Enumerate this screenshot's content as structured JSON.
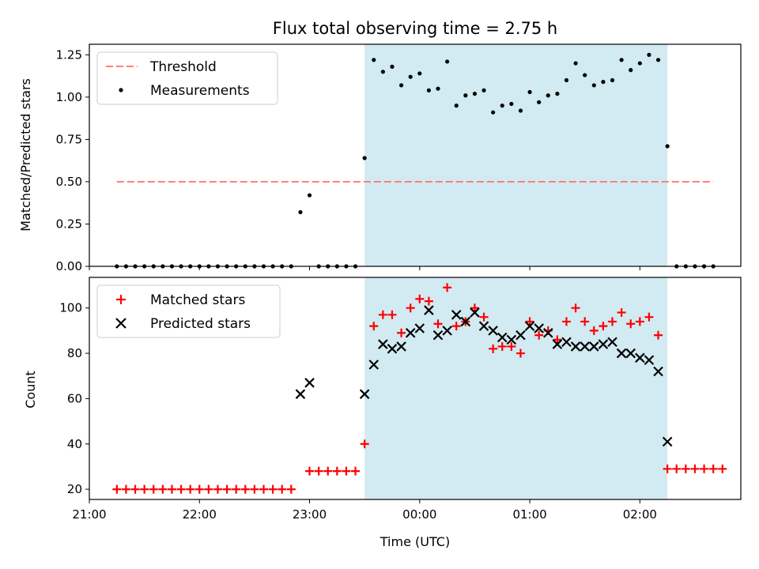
{
  "colors": {
    "threshold": "#ff7f7f",
    "measurement": "#000000",
    "matched": "#ff0000",
    "predicted": "#000000",
    "observing_window": "#add8e6"
  },
  "chart_data": [
    {
      "type": "scatter",
      "title": "Flux total observing time = 2.75 h",
      "xlabel": "",
      "ylabel": "Matched/Predicted stars",
      "xlim": [
        "21:00",
        "02:55"
      ],
      "ylim": [
        0,
        1.3125
      ],
      "yticks": [
        "0.00",
        "0.25",
        "0.50",
        "0.75",
        "1.00",
        "1.25"
      ],
      "shaded_span": {
        "x": [
          "23:30",
          "02:15"
        ]
      },
      "legend": {
        "placement": "top-left",
        "entries": [
          "Threshold",
          "Measurements"
        ]
      },
      "series": [
        {
          "name": "Threshold",
          "style": "dashed-line",
          "points": [
            [
              "21:15",
              0.5
            ],
            [
              "02:40",
              0.5
            ]
          ]
        },
        {
          "name": "Measurements",
          "style": "dot",
          "points": [
            [
              "21:15",
              0
            ],
            [
              "21:20",
              0
            ],
            [
              "21:25",
              0
            ],
            [
              "21:30",
              0
            ],
            [
              "21:35",
              0
            ],
            [
              "21:40",
              0
            ],
            [
              "21:45",
              0
            ],
            [
              "21:50",
              0
            ],
            [
              "21:55",
              0
            ],
            [
              "22:00",
              0
            ],
            [
              "22:05",
              0
            ],
            [
              "22:10",
              0
            ],
            [
              "22:15",
              0
            ],
            [
              "22:20",
              0
            ],
            [
              "22:25",
              0
            ],
            [
              "22:30",
              0
            ],
            [
              "22:35",
              0
            ],
            [
              "22:40",
              0
            ],
            [
              "22:45",
              0
            ],
            [
              "22:50",
              0
            ],
            [
              "22:55",
              0.32
            ],
            [
              "23:00",
              0.42
            ],
            [
              "23:05",
              0
            ],
            [
              "23:10",
              0
            ],
            [
              "23:15",
              0
            ],
            [
              "23:20",
              0
            ],
            [
              "23:25",
              0
            ],
            [
              "23:30",
              0.64
            ],
            [
              "23:35",
              1.22
            ],
            [
              "23:40",
              1.15
            ],
            [
              "23:45",
              1.18
            ],
            [
              "23:50",
              1.07
            ],
            [
              "23:55",
              1.12
            ],
            [
              "00:00",
              1.14
            ],
            [
              "00:05",
              1.04
            ],
            [
              "00:10",
              1.05
            ],
            [
              "00:15",
              1.21
            ],
            [
              "00:20",
              0.95
            ],
            [
              "00:25",
              1.01
            ],
            [
              "00:30",
              1.02
            ],
            [
              "00:35",
              1.04
            ],
            [
              "00:40",
              0.91
            ],
            [
              "00:45",
              0.95
            ],
            [
              "00:50",
              0.96
            ],
            [
              "00:55",
              0.92
            ],
            [
              "01:00",
              1.03
            ],
            [
              "01:05",
              0.97
            ],
            [
              "01:10",
              1.01
            ],
            [
              "01:15",
              1.02
            ],
            [
              "01:20",
              1.1
            ],
            [
              "01:25",
              1.2
            ],
            [
              "01:30",
              1.13
            ],
            [
              "01:35",
              1.07
            ],
            [
              "01:40",
              1.09
            ],
            [
              "01:45",
              1.1
            ],
            [
              "01:50",
              1.22
            ],
            [
              "01:55",
              1.16
            ],
            [
              "02:00",
              1.2
            ],
            [
              "02:05",
              1.25
            ],
            [
              "02:10",
              1.22
            ],
            [
              "02:15",
              0.71
            ],
            [
              "02:20",
              0
            ],
            [
              "02:25",
              0
            ],
            [
              "02:30",
              0
            ],
            [
              "02:35",
              0
            ],
            [
              "02:40",
              0
            ]
          ]
        }
      ]
    },
    {
      "type": "scatter",
      "title": "",
      "xlabel": "Time (UTC)",
      "ylabel": "Count",
      "xlim": [
        "21:00",
        "02:55"
      ],
      "ylim": [
        15.5,
        113.5
      ],
      "xticks": [
        "21:00",
        "22:00",
        "23:00",
        "00:00",
        "01:00",
        "02:00"
      ],
      "yticks": [
        "20",
        "40",
        "60",
        "80",
        "100"
      ],
      "shaded_span": {
        "x": [
          "23:30",
          "02:15"
        ]
      },
      "legend": {
        "placement": "top-left",
        "entries": [
          "Matched stars",
          "Predicted stars"
        ]
      },
      "series": [
        {
          "name": "Matched stars",
          "style": "plus",
          "points": [
            [
              "21:15",
              20
            ],
            [
              "21:20",
              20
            ],
            [
              "21:25",
              20
            ],
            [
              "21:30",
              20
            ],
            [
              "21:35",
              20
            ],
            [
              "21:40",
              20
            ],
            [
              "21:45",
              20
            ],
            [
              "21:50",
              20
            ],
            [
              "21:55",
              20
            ],
            [
              "22:00",
              20
            ],
            [
              "22:05",
              20
            ],
            [
              "22:10",
              20
            ],
            [
              "22:15",
              20
            ],
            [
              "22:20",
              20
            ],
            [
              "22:25",
              20
            ],
            [
              "22:30",
              20
            ],
            [
              "22:35",
              20
            ],
            [
              "22:40",
              20
            ],
            [
              "22:45",
              20
            ],
            [
              "22:50",
              20
            ],
            [
              "23:00",
              28
            ],
            [
              "23:05",
              28
            ],
            [
              "23:10",
              28
            ],
            [
              "23:15",
              28
            ],
            [
              "23:20",
              28
            ],
            [
              "23:25",
              28
            ],
            [
              "23:30",
              40
            ],
            [
              "23:35",
              92
            ],
            [
              "23:40",
              97
            ],
            [
              "23:45",
              97
            ],
            [
              "23:50",
              89
            ],
            [
              "23:55",
              100
            ],
            [
              "00:00",
              104
            ],
            [
              "00:05",
              103
            ],
            [
              "00:10",
              93
            ],
            [
              "00:15",
              109
            ],
            [
              "00:20",
              92
            ],
            [
              "00:25",
              94
            ],
            [
              "00:30",
              100
            ],
            [
              "00:35",
              96
            ],
            [
              "00:40",
              82
            ],
            [
              "00:45",
              83
            ],
            [
              "00:50",
              83
            ],
            [
              "00:55",
              80
            ],
            [
              "01:00",
              94
            ],
            [
              "01:05",
              88
            ],
            [
              "01:10",
              90
            ],
            [
              "01:15",
              86
            ],
            [
              "01:20",
              94
            ],
            [
              "01:25",
              100
            ],
            [
              "01:30",
              94
            ],
            [
              "01:35",
              90
            ],
            [
              "01:40",
              92
            ],
            [
              "01:45",
              94
            ],
            [
              "01:50",
              98
            ],
            [
              "01:55",
              93
            ],
            [
              "02:00",
              94
            ],
            [
              "02:05",
              96
            ],
            [
              "02:10",
              88
            ],
            [
              "02:15",
              29
            ],
            [
              "02:20",
              29
            ],
            [
              "02:25",
              29
            ],
            [
              "02:30",
              29
            ],
            [
              "02:35",
              29
            ],
            [
              "02:40",
              29
            ],
            [
              "02:45",
              29
            ]
          ]
        },
        {
          "name": "Predicted stars",
          "style": "cross",
          "points": [
            [
              "22:55",
              62
            ],
            [
              "23:00",
              67
            ],
            [
              "23:30",
              62
            ],
            [
              "23:35",
              75
            ],
            [
              "23:40",
              84
            ],
            [
              "23:45",
              82
            ],
            [
              "23:50",
              83
            ],
            [
              "23:55",
              89
            ],
            [
              "00:00",
              91
            ],
            [
              "00:05",
              99
            ],
            [
              "00:10",
              88
            ],
            [
              "00:15",
              90
            ],
            [
              "00:20",
              97
            ],
            [
              "00:25",
              94
            ],
            [
              "00:30",
              98
            ],
            [
              "00:35",
              92
            ],
            [
              "00:40",
              90
            ],
            [
              "00:45",
              87
            ],
            [
              "00:50",
              86
            ],
            [
              "00:55",
              88
            ],
            [
              "01:00",
              92
            ],
            [
              "01:05",
              91
            ],
            [
              "01:10",
              89
            ],
            [
              "01:15",
              84
            ],
            [
              "01:20",
              85
            ],
            [
              "01:25",
              83
            ],
            [
              "01:30",
              83
            ],
            [
              "01:35",
              83
            ],
            [
              "01:40",
              84
            ],
            [
              "01:45",
              85
            ],
            [
              "01:50",
              80
            ],
            [
              "01:55",
              80
            ],
            [
              "02:00",
              78
            ],
            [
              "02:05",
              77
            ],
            [
              "02:10",
              72
            ],
            [
              "02:15",
              41
            ]
          ]
        }
      ]
    }
  ]
}
